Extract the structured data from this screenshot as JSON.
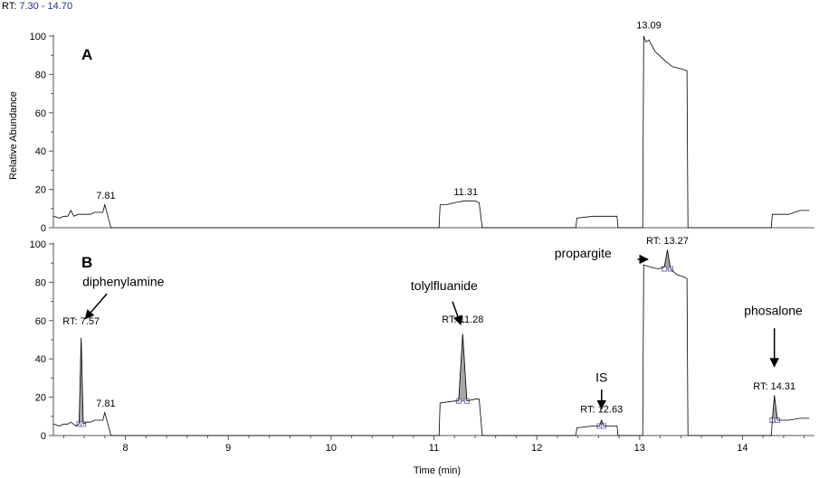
{
  "header": {
    "rt_prefix": "RT: ",
    "rt_range": "7.30 - 14.70"
  },
  "colors": {
    "trace": "#000000",
    "peak_fill": "#a6a6a6",
    "marker": "#7a72b8",
    "range_text": "#1d2f8c"
  },
  "chart_data": {
    "type": "line",
    "x_label": "Time (min)",
    "y_label": "Relative Abundance",
    "x_range": [
      7.3,
      14.7
    ],
    "x_ticks": [
      "8",
      "9",
      "10",
      "11",
      "12",
      "13",
      "14"
    ],
    "y_ticks": [
      "0",
      "20",
      "40",
      "60",
      "80",
      "100"
    ],
    "y_range": [
      0,
      100
    ],
    "grid": false,
    "panels": [
      {
        "label": "A",
        "trace": [
          [
            7.3,
            6
          ],
          [
            7.36,
            5
          ],
          [
            7.4,
            6
          ],
          [
            7.44,
            6
          ],
          [
            7.47,
            9
          ],
          [
            7.5,
            6
          ],
          [
            7.54,
            7
          ],
          [
            7.58,
            7
          ],
          [
            7.62,
            7
          ],
          [
            7.66,
            7
          ],
          [
            7.7,
            8
          ],
          [
            7.74,
            8
          ],
          [
            7.78,
            8
          ],
          [
            7.8,
            12
          ],
          [
            7.83,
            6
          ],
          [
            7.86,
            0
          ],
          [
            11.05,
            0
          ],
          [
            11.06,
            12
          ],
          [
            11.12,
            12
          ],
          [
            11.2,
            13
          ],
          [
            11.3,
            14
          ],
          [
            11.4,
            14
          ],
          [
            11.44,
            13
          ],
          [
            11.47,
            0
          ],
          [
            12.38,
            0
          ],
          [
            12.39,
            5
          ],
          [
            12.55,
            6
          ],
          [
            12.78,
            6
          ],
          [
            12.79,
            0
          ],
          [
            13.03,
            0
          ],
          [
            13.04,
            100
          ],
          [
            13.06,
            97
          ],
          [
            13.09,
            98
          ],
          [
            13.12,
            95
          ],
          [
            13.15,
            92
          ],
          [
            13.19,
            90
          ],
          [
            13.25,
            87
          ],
          [
            13.32,
            84
          ],
          [
            13.4,
            83
          ],
          [
            13.46,
            82
          ],
          [
            13.47,
            0
          ],
          [
            14.28,
            0
          ],
          [
            14.29,
            7
          ],
          [
            14.45,
            7
          ],
          [
            14.56,
            9
          ],
          [
            14.65,
            9
          ]
        ],
        "peak_labels": [
          {
            "text": "7.81",
            "x": 7.81,
            "y": 15
          },
          {
            "text": "11.31",
            "x": 11.31,
            "y": 17
          },
          {
            "text": "13.09",
            "x": 13.09,
            "y": 104
          }
        ]
      },
      {
        "label": "B",
        "trace": [
          [
            7.3,
            6
          ],
          [
            7.36,
            5
          ],
          [
            7.4,
            6
          ],
          [
            7.44,
            6
          ],
          [
            7.47,
            7
          ],
          [
            7.52,
            5
          ],
          [
            7.55,
            6
          ],
          [
            7.57,
            51
          ],
          [
            7.59,
            6
          ],
          [
            7.62,
            7
          ],
          [
            7.66,
            7
          ],
          [
            7.7,
            8
          ],
          [
            7.74,
            8
          ],
          [
            7.78,
            8
          ],
          [
            7.8,
            12
          ],
          [
            7.83,
            6
          ],
          [
            7.86,
            0
          ],
          [
            11.05,
            0
          ],
          [
            11.06,
            17
          ],
          [
            11.2,
            18
          ],
          [
            11.24,
            18
          ],
          [
            11.28,
            53
          ],
          [
            11.32,
            18
          ],
          [
            11.4,
            19
          ],
          [
            11.44,
            19
          ],
          [
            11.47,
            0
          ],
          [
            12.38,
            0
          ],
          [
            12.39,
            4
          ],
          [
            12.55,
            5
          ],
          [
            12.61,
            5
          ],
          [
            12.63,
            8
          ],
          [
            12.65,
            5
          ],
          [
            12.78,
            5
          ],
          [
            12.79,
            0
          ],
          [
            13.03,
            0
          ],
          [
            13.04,
            89
          ],
          [
            13.1,
            88
          ],
          [
            13.18,
            87
          ],
          [
            13.24,
            88
          ],
          [
            13.27,
            97
          ],
          [
            13.3,
            87
          ],
          [
            13.36,
            84
          ],
          [
            13.42,
            83
          ],
          [
            13.46,
            82
          ],
          [
            13.47,
            0
          ],
          [
            14.28,
            0
          ],
          [
            14.29,
            8
          ],
          [
            14.29,
            8
          ],
          [
            14.31,
            21
          ],
          [
            14.34,
            8
          ],
          [
            14.45,
            8
          ],
          [
            14.56,
            9
          ],
          [
            14.65,
            9
          ]
        ],
        "peaks": [
          {
            "apex_x": 7.57,
            "apex_y": 51,
            "base_left": 7.55,
            "base_right": 7.59,
            "base_y": 6
          },
          {
            "apex_x": 11.28,
            "apex_y": 53,
            "base_left": 11.24,
            "base_right": 11.32,
            "base_y": 18
          },
          {
            "apex_x": 12.63,
            "apex_y": 8,
            "base_left": 12.61,
            "base_right": 12.65,
            "base_y": 5
          },
          {
            "apex_x": 13.27,
            "apex_y": 97,
            "base_left": 13.24,
            "base_right": 13.3,
            "base_y": 87
          },
          {
            "apex_x": 14.31,
            "apex_y": 21,
            "base_left": 14.29,
            "base_right": 14.34,
            "base_y": 8
          }
        ],
        "peak_labels": [
          {
            "text": "RT: 7.57",
            "x": 7.57,
            "y": 58
          },
          {
            "text": "7.81",
            "x": 7.81,
            "y": 15
          },
          {
            "text": "RT: 11.28",
            "x": 11.28,
            "y": 59
          },
          {
            "text": "RT: 12.63",
            "x": 12.63,
            "y": 12
          },
          {
            "text": "RT: 13.27",
            "x": 13.27,
            "y": 100
          },
          {
            "text": "RT: 14.31",
            "x": 14.31,
            "y": 24
          }
        ],
        "compound_annotations": [
          {
            "text": "diphenylamine",
            "text_x": 7.98,
            "text_y": 78,
            "arrow_from": [
              7.82,
              74
            ],
            "arrow_to": [
              7.61,
              61
            ]
          },
          {
            "text": "tolylfluanide",
            "text_x": 11.1,
            "text_y": 76,
            "arrow_from": [
              11.18,
              70
            ],
            "arrow_to": [
              11.26,
              58
            ]
          },
          {
            "text": "IS",
            "text_x": 12.63,
            "text_y": 28,
            "arrow_from": [
              12.63,
              24
            ],
            "arrow_to": [
              12.63,
              14
            ]
          },
          {
            "text": "propargite",
            "text_x": 12.45,
            "text_y": 93,
            "arrow_from": [
              12.98,
              92
            ],
            "arrow_to": [
              13.08,
              92
            ]
          },
          {
            "text": "phosalone",
            "text_x": 14.3,
            "text_y": 63,
            "arrow_from": [
              14.31,
              56
            ],
            "arrow_to": [
              14.31,
              36
            ]
          }
        ]
      }
    ]
  }
}
